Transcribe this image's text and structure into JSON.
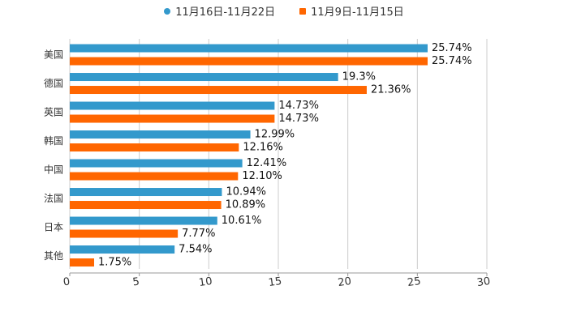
{
  "chart_data": {
    "type": "bar",
    "orientation": "horizontal",
    "title": "",
    "xlabel": "",
    "ylabel": "",
    "categories": [
      "美国",
      "德国",
      "英国",
      "韩国",
      "中国",
      "法国",
      "日本",
      "其他"
    ],
    "series": [
      {
        "name": "11月16日-11月22日",
        "color": "#3399CC",
        "values": [
          25.74,
          19.3,
          14.73,
          12.99,
          12.41,
          10.94,
          10.61,
          7.54
        ],
        "labels": [
          "25.74%",
          "19.3%",
          "14.73%",
          "12.99%",
          "12.41%",
          "10.94%",
          "10.61%",
          "7.54%"
        ]
      },
      {
        "name": "11月9日-11月15日",
        "color": "#FF6600",
        "values": [
          25.74,
          21.36,
          14.73,
          12.16,
          12.1,
          10.89,
          7.77,
          1.75
        ],
        "labels": [
          "25.74%",
          "21.36%",
          "14.73%",
          "12.16%",
          "12.10%",
          "10.89%",
          "7.77%",
          "1.75%"
        ]
      }
    ],
    "xlim": [
      0,
      30
    ],
    "xticks": [
      "0",
      "5",
      "10",
      "15",
      "20",
      "25",
      "30"
    ],
    "grid": true,
    "legend_position": "top-center"
  }
}
